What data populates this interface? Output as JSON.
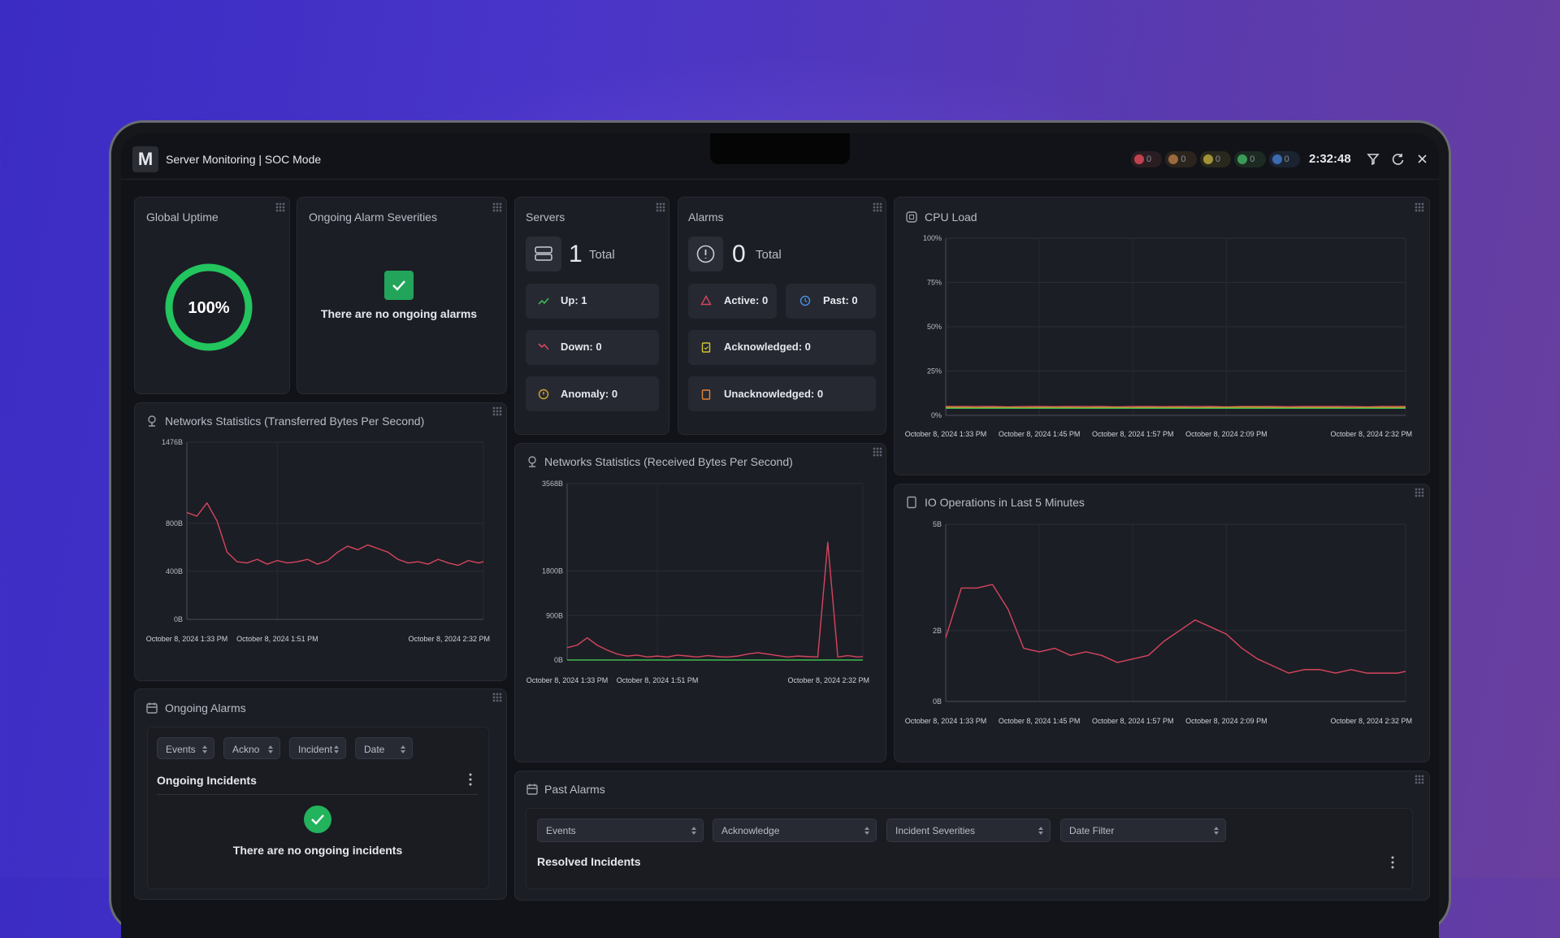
{
  "header": {
    "logo": "M",
    "title": "Server Monitoring | SOC Mode",
    "status_counts": [
      0,
      0,
      0,
      0,
      0
    ],
    "time": "2:32:48"
  },
  "global_uptime": {
    "title": "Global Uptime",
    "value": 100,
    "label": "100%"
  },
  "ongoing_alarm_severities": {
    "title": "Ongoing Alarm Severities",
    "message": "There are no ongoing alarms"
  },
  "servers": {
    "title": "Servers",
    "total": 1,
    "total_label": "Total",
    "up": "Up: 1",
    "down": "Down: 0",
    "anomaly": "Anomaly: 0"
  },
  "alarms": {
    "title": "Alarms",
    "total": 0,
    "total_label": "Total",
    "active": "Active: 0",
    "past": "Past: 0",
    "acknowledged": "Acknowledged: 0",
    "unacknowledged": "Unacknowledged: 0"
  },
  "chart_data": [
    {
      "type": "line",
      "title": "CPU Load",
      "x": [
        813,
        815,
        817,
        819,
        821,
        823,
        825,
        827,
        829,
        831,
        833,
        835,
        837,
        839,
        841,
        843,
        845,
        847,
        849,
        851,
        853,
        855,
        857,
        859,
        861,
        863,
        865,
        867,
        869,
        871,
        872
      ],
      "series": [
        {
          "color": "#d6455d",
          "values": [
            5,
            5,
            5,
            5,
            4.8,
            5,
            5,
            4.9,
            5,
            5,
            5,
            4.8,
            5,
            5,
            4.9,
            5,
            5,
            5,
            4.8,
            5,
            5,
            5,
            4.9,
            5,
            5,
            5,
            5,
            4.8,
            5,
            5,
            5
          ]
        },
        {
          "color": "#d4a72c",
          "values": [
            4.5,
            4.5,
            4.4,
            4.5,
            4.5,
            4.4,
            4.5,
            4.5,
            4.5,
            4.4,
            4.5,
            4.5,
            4.4,
            4.5,
            4.5,
            4.5,
            4.4,
            4.5,
            4.5,
            4.6,
            4.6,
            4.5,
            4.4,
            4.5,
            4.5,
            4.5,
            4.4,
            4.5,
            4.5,
            4.5,
            4.5
          ]
        },
        {
          "color": "#3fb950",
          "values": [
            4,
            4,
            4,
            4,
            4,
            4,
            4,
            4,
            4,
            4,
            4,
            4,
            4,
            4,
            4,
            4,
            4,
            4,
            4,
            4,
            4,
            4,
            4,
            4,
            4,
            4,
            4,
            4,
            4,
            4,
            4
          ]
        }
      ],
      "xlim": [
        813,
        872
      ],
      "ylim": [
        0,
        100
      ],
      "xticks": [
        {
          "value": 813,
          "label": "October 8, 2024 1:33 PM"
        },
        {
          "value": 825,
          "label": "October 8, 2024 1:45 PM"
        },
        {
          "value": 837,
          "label": "October 8, 2024 1:57 PM"
        },
        {
          "value": 849,
          "label": "October 8, 2024 2:09 PM"
        },
        {
          "value": 872,
          "label": "October 8, 2024 2:32 PM"
        }
      ],
      "yticks": [
        {
          "value": 0,
          "label": "0%"
        },
        {
          "value": 25,
          "label": "25%"
        },
        {
          "value": 50,
          "label": "50%"
        },
        {
          "value": 75,
          "label": "75%"
        },
        {
          "value": 100,
          "label": "100%"
        }
      ],
      "grid": true
    },
    {
      "type": "line",
      "title": "Networks Statistics (Transferred Bytes Per Second)",
      "x": [
        813,
        815,
        817,
        819,
        821,
        823,
        825,
        827,
        829,
        831,
        833,
        835,
        837,
        839,
        841,
        843,
        845,
        847,
        849,
        851,
        853,
        855,
        857,
        859,
        861,
        863,
        865,
        867,
        869,
        871,
        872
      ],
      "series": [
        {
          "color": "#d6455d",
          "values": [
            890,
            860,
            970,
            820,
            560,
            480,
            470,
            500,
            460,
            490,
            470,
            480,
            500,
            460,
            490,
            560,
            610,
            580,
            620,
            590,
            560,
            500,
            470,
            480,
            460,
            500,
            470,
            450,
            490,
            470,
            480
          ]
        }
      ],
      "xlim": [
        813,
        872
      ],
      "ylim": [
        0,
        1476
      ],
      "xticks": [
        {
          "value": 813,
          "label": "October 8, 2024 1:33 PM"
        },
        {
          "value": 831,
          "label": "October 8, 2024 1:51 PM"
        },
        {
          "value": 872,
          "label": "October 8, 2024 2:32 PM"
        }
      ],
      "yticks": [
        {
          "value": 0,
          "label": "0B"
        },
        {
          "value": 400,
          "label": "400B"
        },
        {
          "value": 800,
          "label": "800B"
        },
        {
          "value": 1476,
          "label": "1476B"
        }
      ],
      "grid": true
    },
    {
      "type": "line",
      "title": "Networks Statistics (Received Bytes Per Second)",
      "x": [
        813,
        815,
        817,
        819,
        821,
        823,
        825,
        827,
        829,
        831,
        833,
        835,
        837,
        839,
        841,
        843,
        845,
        847,
        849,
        851,
        853,
        855,
        857,
        859,
        861,
        863,
        865,
        867,
        869,
        871,
        872
      ],
      "series": [
        {
          "color": "#3fb950",
          "values": [
            0,
            0,
            0,
            0,
            0,
            0,
            0,
            0,
            0,
            0,
            0,
            0,
            0,
            0,
            0,
            0,
            0,
            0,
            0,
            0,
            0,
            0,
            0,
            0,
            0,
            0,
            0,
            0,
            0,
            0,
            0
          ]
        },
        {
          "color": "#d6455d",
          "values": [
            250,
            300,
            450,
            300,
            200,
            120,
            80,
            100,
            60,
            80,
            60,
            100,
            80,
            60,
            90,
            70,
            60,
            80,
            120,
            150,
            120,
            90,
            60,
            80,
            70,
            60,
            2380,
            60,
            90,
            60,
            70
          ]
        }
      ],
      "xlim": [
        813,
        872
      ],
      "ylim": [
        0,
        3568
      ],
      "xticks": [
        {
          "value": 813,
          "label": "October 8, 2024 1:33 PM"
        },
        {
          "value": 831,
          "label": "October 8, 2024 1:51 PM"
        },
        {
          "value": 872,
          "label": "October 8, 2024 2:32 PM"
        }
      ],
      "yticks": [
        {
          "value": 0,
          "label": "0B"
        },
        {
          "value": 900,
          "label": "900B"
        },
        {
          "value": 1800,
          "label": "1800B"
        },
        {
          "value": 3568,
          "label": "3568B"
        }
      ],
      "grid": true
    },
    {
      "type": "line",
      "title": "IO Operations in Last 5 Minutes",
      "x": [
        813,
        815,
        817,
        819,
        821,
        823,
        825,
        827,
        829,
        831,
        833,
        835,
        837,
        839,
        841,
        843,
        845,
        847,
        849,
        851,
        853,
        855,
        857,
        859,
        861,
        863,
        865,
        867,
        869,
        871,
        872
      ],
      "series": [
        {
          "color": "#d6455d",
          "values": [
            1.8,
            3.2,
            3.2,
            3.3,
            2.6,
            1.5,
            1.4,
            1.5,
            1.3,
            1.4,
            1.3,
            1.1,
            1.2,
            1.3,
            1.7,
            2.0,
            2.3,
            2.1,
            1.9,
            1.5,
            1.2,
            1.0,
            0.8,
            0.9,
            0.9,
            0.8,
            0.9,
            0.8,
            0.8,
            0.8,
            0.85
          ]
        }
      ],
      "xlim": [
        813,
        872
      ],
      "ylim": [
        0,
        5
      ],
      "xticks": [
        {
          "value": 813,
          "label": "October 8, 2024 1:33 PM"
        },
        {
          "value": 825,
          "label": "October 8, 2024 1:45 PM"
        },
        {
          "value": 837,
          "label": "October 8, 2024 1:57 PM"
        },
        {
          "value": 849,
          "label": "October 8, 2024 2:09 PM"
        },
        {
          "value": 872,
          "label": "October 8, 2024 2:32 PM"
        }
      ],
      "yticks": [
        {
          "value": 0,
          "label": "0B"
        },
        {
          "value": 2,
          "label": "2B"
        },
        {
          "value": 5,
          "label": "5B"
        }
      ],
      "grid": true
    }
  ],
  "ongoing_alarms": {
    "title": "Ongoing Alarms",
    "filters": [
      "Events",
      "Ackno",
      "Incident",
      "Date"
    ],
    "section": "Ongoing Incidents",
    "message": "There are no ongoing incidents"
  },
  "past_alarms": {
    "title": "Past Alarms",
    "filters": [
      "Events",
      "Acknowledge",
      "Incident Severities",
      "Date Filter"
    ],
    "section": "Resolved Incidents"
  }
}
